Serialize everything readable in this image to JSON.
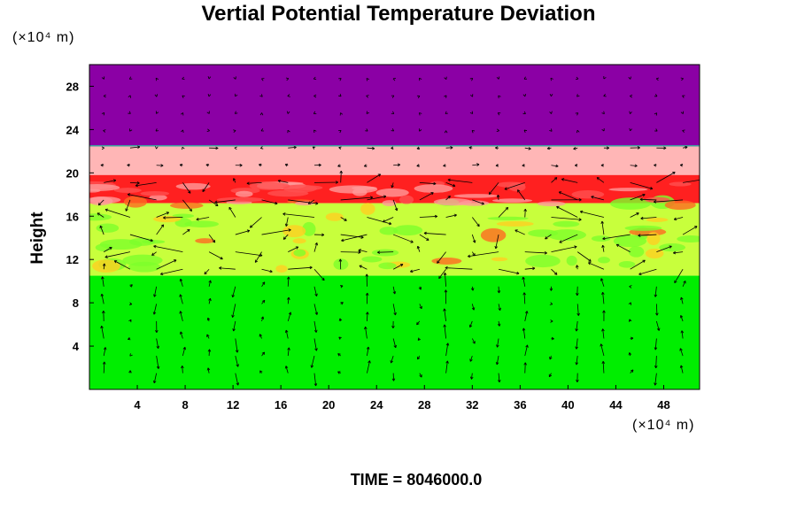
{
  "chart_data": {
    "type": "heatmap",
    "title": "Vertial Potential Temperature Deviation",
    "ylabel": "Height",
    "xunit": "(×10⁴ m)",
    "yunit": "(×10⁴ m)",
    "xlim": [
      0,
      51
    ],
    "ylim": [
      0,
      30
    ],
    "xticks": [
      "4",
      "8",
      "12",
      "16",
      "20",
      "24",
      "28",
      "32",
      "36",
      "40",
      "44",
      "48"
    ],
    "yticks": [
      "4",
      "8",
      "12",
      "16",
      "20",
      "24",
      "28"
    ],
    "layers": [
      {
        "from": 22.5,
        "to": 30,
        "color": "#8b00a5"
      },
      {
        "from": 19.8,
        "to": 22.5,
        "color": "#ffb6b6"
      },
      {
        "from": 17.2,
        "to": 19.8,
        "color": "#ff2020"
      },
      {
        "from": 10.5,
        "to": 17.2,
        "color": "#c8ff3c"
      },
      {
        "from": 0,
        "to": 10.5,
        "color": "#00ee00"
      }
    ],
    "overlay": "velocity vectors",
    "footer": "TIME = 8046000.0"
  }
}
